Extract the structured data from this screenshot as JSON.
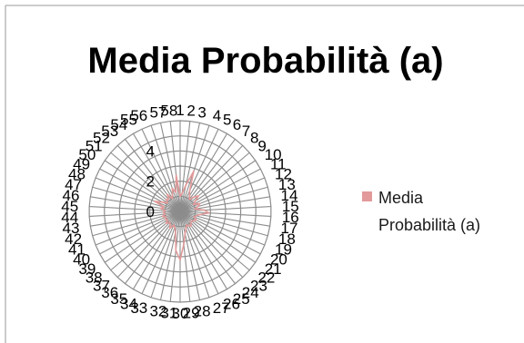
{
  "chart_data": {
    "type": "radar",
    "title": "Media Probabilità (a)",
    "categories": [
      "1",
      "2",
      "3",
      "4",
      "5",
      "6",
      "7",
      "8",
      "9",
      "10",
      "11",
      "12",
      "13",
      "14",
      "15",
      "16",
      "17",
      "18",
      "19",
      "20",
      "21",
      "22",
      "23",
      "24",
      "25",
      "26",
      "27",
      "28",
      "29",
      "30",
      "31",
      "32",
      "33",
      "34",
      "35",
      "36",
      "37",
      "38",
      "39",
      "40",
      "41",
      "42",
      "43",
      "44",
      "45",
      "46",
      "47",
      "48",
      "49",
      "50",
      "51",
      "52",
      "53",
      "54",
      "55",
      "56",
      "57",
      "58"
    ],
    "radial_ticks": [
      0,
      2,
      4
    ],
    "rmax": 6,
    "series": [
      {
        "name": "Media Probabilità (a)",
        "color": "#e39a9a",
        "values": [
          1.0,
          1.2,
          1.8,
          2.8,
          1.5,
          1.2,
          1.0,
          1.3,
          1.6,
          1.2,
          1.0,
          1.4,
          1.2,
          1.0,
          1.6,
          1.9,
          1.3,
          1.1,
          1.0,
          1.2,
          1.1,
          1.0,
          1.0,
          1.2,
          1.1,
          1.0,
          1.2,
          1.5,
          2.2,
          3.2,
          2.6,
          1.4,
          1.1,
          1.0,
          1.3,
          1.1,
          1.0,
          1.2,
          1.0,
          1.1,
          1.0,
          1.2,
          1.0,
          1.1,
          1.0,
          1.3,
          1.1,
          1.8,
          1.3,
          1.0,
          1.2,
          1.1,
          1.4,
          1.0,
          1.2,
          1.6,
          1.3,
          2.4
        ]
      }
    ],
    "legend": {
      "position": "right"
    },
    "grid": true
  }
}
